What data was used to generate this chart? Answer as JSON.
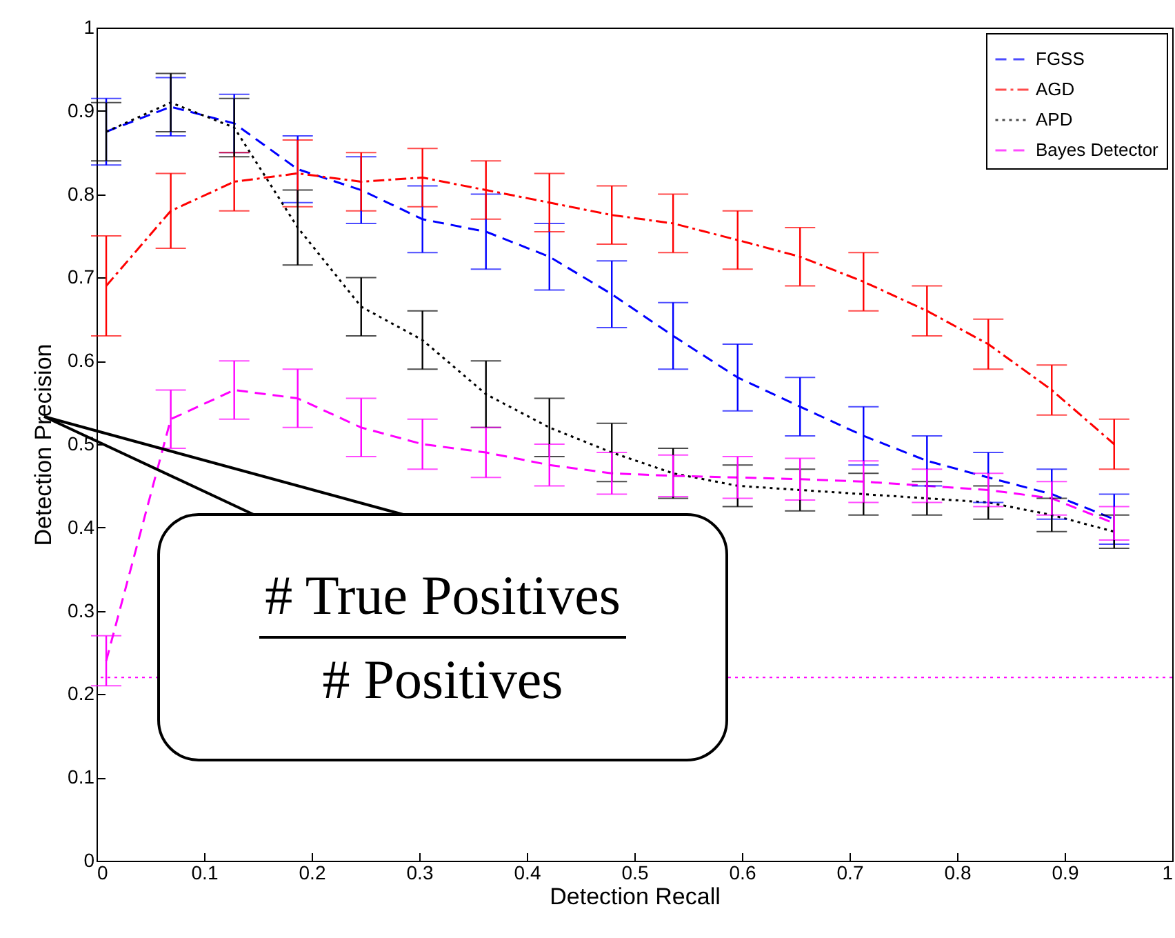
{
  "chart_data": {
    "type": "line",
    "xlabel": "Detection Recall",
    "ylabel": "Detection Precision",
    "x": [
      0.009,
      0.069,
      0.128,
      0.187,
      0.246,
      0.303,
      0.362,
      0.421,
      0.479,
      0.536,
      0.596,
      0.654,
      0.713,
      0.772,
      0.829,
      0.888,
      0.946
    ],
    "series": [
      {
        "name": "FGSS",
        "color": "#0000ff",
        "line_style": "dashed",
        "values": [
          0.875,
          0.905,
          0.885,
          0.83,
          0.805,
          0.77,
          0.755,
          0.725,
          0.68,
          0.63,
          0.58,
          0.545,
          0.51,
          0.48,
          0.46,
          0.44,
          0.41
        ],
        "errors": [
          0.04,
          0.035,
          0.035,
          0.04,
          0.04,
          0.04,
          0.045,
          0.04,
          0.04,
          0.04,
          0.04,
          0.035,
          0.035,
          0.03,
          0.03,
          0.03,
          0.03
        ]
      },
      {
        "name": "AGD",
        "color": "#ff0000",
        "line_style": "dashdot",
        "values": [
          0.69,
          0.78,
          0.815,
          0.825,
          0.815,
          0.82,
          0.805,
          0.79,
          0.775,
          0.765,
          0.745,
          0.725,
          0.695,
          0.66,
          0.62,
          0.565,
          0.5
        ],
        "errors": [
          0.06,
          0.045,
          0.035,
          0.04,
          0.035,
          0.035,
          0.035,
          0.035,
          0.035,
          0.035,
          0.035,
          0.035,
          0.035,
          0.03,
          0.03,
          0.03,
          0.03
        ]
      },
      {
        "name": "APD",
        "color": "#000000",
        "line_style": "dotted",
        "values": [
          0.875,
          0.91,
          0.88,
          0.76,
          0.665,
          0.625,
          0.56,
          0.52,
          0.49,
          0.465,
          0.45,
          0.445,
          0.44,
          0.435,
          0.43,
          0.415,
          0.395
        ],
        "errors": [
          0.035,
          0.035,
          0.035,
          0.045,
          0.035,
          0.035,
          0.04,
          0.035,
          0.035,
          0.03,
          0.025,
          0.025,
          0.025,
          0.02,
          0.02,
          0.02,
          0.02
        ]
      },
      {
        "name": "Bayes Detector",
        "color": "#ff00ff",
        "line_style": "dashed",
        "values": [
          0.24,
          0.53,
          0.565,
          0.555,
          0.52,
          0.5,
          0.49,
          0.475,
          0.465,
          0.462,
          0.46,
          0.458,
          0.455,
          0.45,
          0.445,
          0.435,
          0.405
        ],
        "errors": [
          0.03,
          0.035,
          0.035,
          0.035,
          0.035,
          0.03,
          0.03,
          0.025,
          0.025,
          0.025,
          0.025,
          0.025,
          0.025,
          0.02,
          0.02,
          0.02,
          0.02
        ]
      }
    ],
    "xlim": [
      0,
      1
    ],
    "ylim": [
      0,
      1
    ],
    "xticks": [
      0,
      0.1,
      0.2,
      0.3,
      0.4,
      0.5,
      0.6,
      0.7,
      0.8,
      0.9,
      1
    ],
    "yticks": [
      0,
      0.1,
      0.2,
      0.3,
      0.4,
      0.5,
      0.6,
      0.7,
      0.8,
      0.9,
      1
    ],
    "ref_lines": [
      {
        "axis": "y",
        "value": 0.22,
        "color": "#ff00ff",
        "line_style": "dotted"
      }
    ],
    "annotations": [
      "# True Positives",
      "# Positives"
    ],
    "legend": "top right",
    "grid": false,
    "marker": "none"
  }
}
